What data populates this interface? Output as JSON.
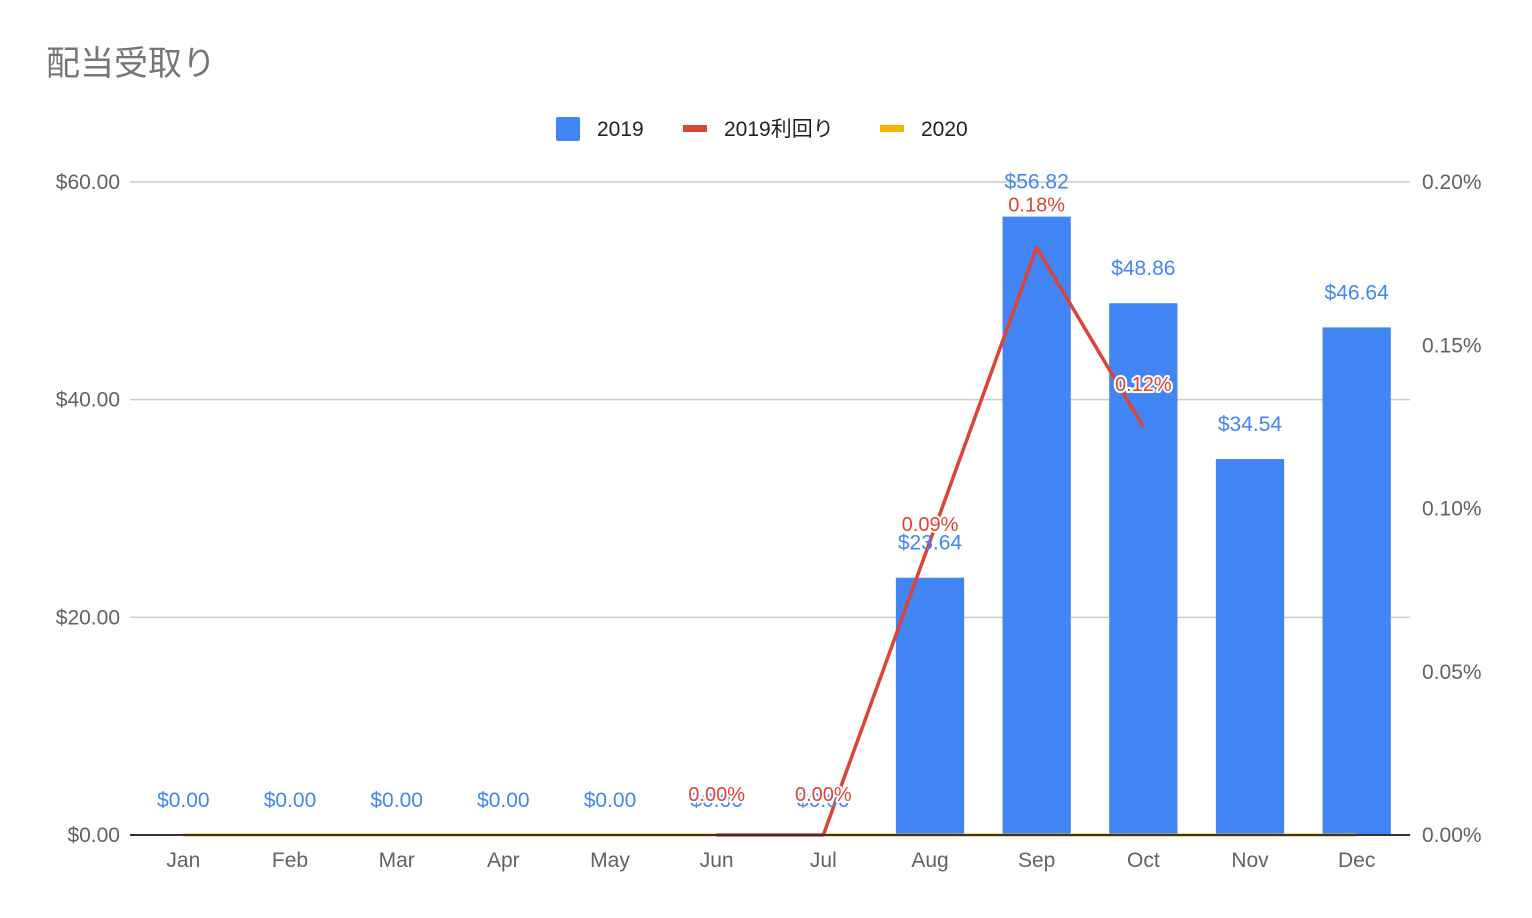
{
  "chart_data": {
    "type": "bar",
    "title": "配当受取り",
    "categories": [
      "Jan",
      "Feb",
      "Mar",
      "Apr",
      "May",
      "Jun",
      "Jul",
      "Aug",
      "Sep",
      "Oct",
      "Nov",
      "Dec"
    ],
    "series": [
      {
        "name": "2019",
        "kind": "bar",
        "axis": "left",
        "color": "#4285f4",
        "values": [
          0,
          0,
          0,
          0,
          0,
          0,
          0,
          23.64,
          56.82,
          48.86,
          34.54,
          46.64
        ],
        "labels": [
          "$0.00",
          "$0.00",
          "$0.00",
          "$0.00",
          "$0.00",
          "$0.00",
          "$0.00",
          "$23.64",
          "$56.82",
          "$48.86",
          "$34.54",
          "$46.64"
        ]
      },
      {
        "name": "2019利回り",
        "kind": "line",
        "axis": "right",
        "color": "#db4437",
        "values": [
          null,
          null,
          null,
          null,
          null,
          0.0,
          0.0,
          0.09,
          0.18,
          0.125,
          null,
          null
        ],
        "labels": [
          null,
          null,
          null,
          null,
          null,
          "0.00%",
          "0.00%",
          "0.09%",
          "0.18%",
          "0.12%",
          null,
          null
        ]
      },
      {
        "name": "2020",
        "kind": "line",
        "axis": "left",
        "color": "#f4b400",
        "values": [
          0,
          0,
          0,
          0,
          0,
          0,
          0,
          0,
          0,
          0,
          0,
          0
        ]
      }
    ],
    "y_left": {
      "min": 0,
      "max": 60,
      "ticks": [
        0,
        20,
        40,
        60
      ],
      "tick_labels": [
        "$0.00",
        "$20.00",
        "$40.00",
        "$60.00"
      ]
    },
    "y_right": {
      "min": 0,
      "max": 0.2,
      "ticks": [
        0,
        0.05,
        0.1,
        0.15,
        0.2
      ],
      "tick_labels": [
        "0.00%",
        "0.05%",
        "0.10%",
        "0.15%",
        "0.20%"
      ]
    },
    "grid": true,
    "legend": "top"
  }
}
